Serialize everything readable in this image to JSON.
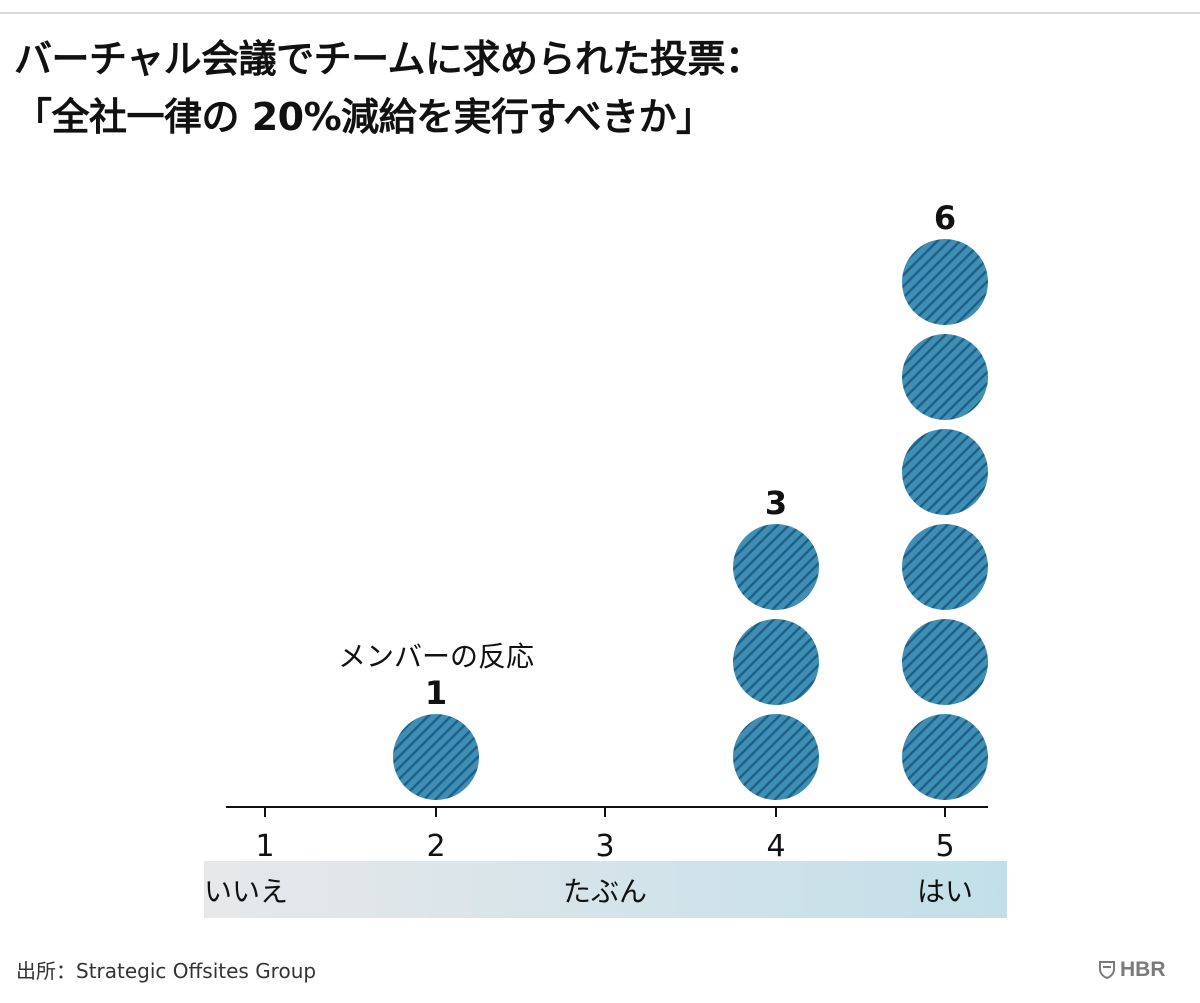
{
  "title": {
    "line1": "バーチャル会議でチームに求められた投票：",
    "line2": "「全社一律の 20%減給を実行すべきか」"
  },
  "chart_data": {
    "type": "dot-stack",
    "categories": [
      "1",
      "2",
      "3",
      "4",
      "5"
    ],
    "values": [
      0,
      1,
      0,
      3,
      6
    ],
    "value_labels": [
      "",
      "1",
      "",
      "3",
      "6"
    ],
    "series_label": "メンバーの反応",
    "scale_labels": {
      "left": "いいえ",
      "middle": "たぶん",
      "right": "はい"
    },
    "colors": {
      "dot_fill": "#3f8fb5",
      "dot_stripe": "#1d5f86",
      "scale_gradient_left": "#e7e8ea",
      "scale_gradient_right": "#c2dfe9"
    }
  },
  "footer": {
    "source": "出所：Strategic Offsites Group",
    "logo": "HBR",
    "logo_icon": "shield-icon"
  }
}
